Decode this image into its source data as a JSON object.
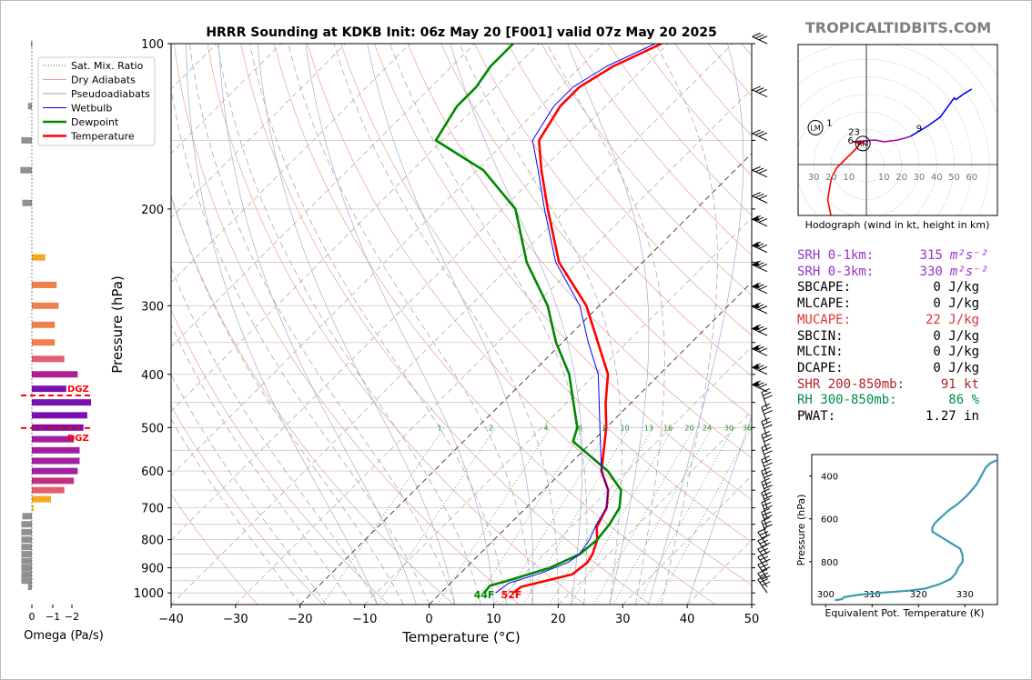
{
  "title": "HRRR Sounding at KDKB Init: 06z May 20 [F001] valid 07z May 20 2025",
  "brand": "TROPICALTIDBITS.COM",
  "legend": [
    {
      "label": "Sat. Mix. Ratio",
      "color": "#2e8b2e",
      "style": "dotted"
    },
    {
      "label": "Dry Adiabats",
      "color": "#e8a0a0",
      "style": "solid"
    },
    {
      "label": "Pseudoadiabats",
      "color": "#a0a0a0",
      "style": "solid"
    },
    {
      "label": "Wetbulb",
      "color": "#0000ff",
      "style": "solid"
    },
    {
      "label": "Dewpoint",
      "color": "#008800",
      "style": "bold"
    },
    {
      "label": "Temperature",
      "color": "#ff0000",
      "style": "bold"
    }
  ],
  "chart_data": [
    {
      "type": "line",
      "name": "skew-t",
      "xlabel": "Temperature (°C)",
      "ylabel": "Pressure (hPa)",
      "x_ticks": [
        -40,
        -30,
        -20,
        -10,
        0,
        10,
        20,
        30,
        40,
        50
      ],
      "y_ticks": [
        100,
        200,
        300,
        400,
        500,
        600,
        700,
        800,
        900,
        1000
      ],
      "xlim": [
        -40,
        50
      ],
      "ylim": [
        1050,
        100
      ],
      "y_scale": "log",
      "mixing_ratio_labels": [
        "1",
        "2",
        "4",
        "6",
        "8",
        "10",
        "13",
        "16",
        "20",
        "24",
        "30",
        "36"
      ],
      "series": [
        {
          "name": "Temperature",
          "color": "#ff0000",
          "points": [
            [
              11.2,
              1000
            ],
            [
              11.5,
              975
            ],
            [
              17.5,
              925
            ],
            [
              18,
              880
            ],
            [
              17.5,
              850
            ],
            [
              16,
              800
            ],
            [
              14,
              760
            ],
            [
              12.5,
              700
            ],
            [
              10,
              650
            ],
            [
              6,
              600
            ],
            [
              0,
              500
            ],
            [
              -4,
              450
            ],
            [
              -8,
              400
            ],
            [
              -14.5,
              350
            ],
            [
              -22,
              300
            ],
            [
              -33,
              250
            ],
            [
              -43,
              200
            ],
            [
              -50,
              170
            ],
            [
              -55,
              150
            ],
            [
              -57,
              130
            ],
            [
              -57,
              120
            ],
            [
              -55,
              110
            ],
            [
              -51,
              100
            ]
          ]
        },
        {
          "name": "Dewpoint",
          "color": "#008800",
          "points": [
            [
              6.7,
              1000
            ],
            [
              6.5,
              970
            ],
            [
              8.5,
              950
            ],
            [
              13,
              900
            ],
            [
              15.5,
              850
            ],
            [
              16,
              800
            ],
            [
              15.5,
              750
            ],
            [
              14.5,
              700
            ],
            [
              12,
              650
            ],
            [
              7,
              600
            ],
            [
              -3,
              530
            ],
            [
              -4.5,
              500
            ],
            [
              -9,
              450
            ],
            [
              -14,
              400
            ],
            [
              -21,
              350
            ],
            [
              -28,
              300
            ],
            [
              -38,
              250
            ],
            [
              -48,
              200
            ],
            [
              -59,
              170
            ],
            [
              -71,
              150
            ],
            [
              -73,
              130
            ],
            [
              -73,
              120
            ],
            [
              -74,
              110
            ],
            [
              -74,
              100
            ]
          ]
        },
        {
          "name": "Wetbulb",
          "color": "#0000ff",
          "points": [
            [
              8.5,
              1000
            ],
            [
              9,
              960
            ],
            [
              12.5,
              920
            ],
            [
              15,
              880
            ],
            [
              15.5,
              850
            ],
            [
              14.8,
              800
            ],
            [
              13.5,
              750
            ],
            [
              12.5,
              700
            ],
            [
              10,
              650
            ],
            [
              6,
              600
            ],
            [
              -1,
              500
            ],
            [
              -5,
              450
            ],
            [
              -9.5,
              400
            ],
            [
              -16,
              350
            ],
            [
              -23,
              300
            ],
            [
              -33.5,
              250
            ],
            [
              -43.5,
              200
            ],
            [
              -50.5,
              170
            ],
            [
              -56,
              150
            ],
            [
              -58,
              130
            ],
            [
              -58,
              120
            ],
            [
              -56,
              110
            ],
            [
              -52,
              100
            ]
          ]
        }
      ],
      "surface_labels": {
        "dewpoint": "44F",
        "temperature": "52F"
      },
      "wind_barbs_right": true
    },
    {
      "type": "bar",
      "name": "omega",
      "xlabel": "Omega (Pa/s)",
      "x_ticks": [
        "0",
        "−1",
        "−2"
      ],
      "dgz_label": "DGZ",
      "dgz_pressures_hpa": [
        437,
        501
      ],
      "bars": [
        {
          "p": 100,
          "v": 0.05,
          "c": "#909090"
        },
        {
          "p": 130,
          "v": 0.2,
          "c": "#909090"
        },
        {
          "p": 150,
          "v": 0.55,
          "c": "#909090"
        },
        {
          "p": 170,
          "v": 0.6,
          "c": "#909090"
        },
        {
          "p": 195,
          "v": 0.5,
          "c": "#909090"
        },
        {
          "p": 245,
          "v": -0.7,
          "c": "#f5a623"
        },
        {
          "p": 275,
          "v": -1.3,
          "c": "#f08050"
        },
        {
          "p": 300,
          "v": -1.4,
          "c": "#f08050"
        },
        {
          "p": 325,
          "v": -1.2,
          "c": "#f08050"
        },
        {
          "p": 350,
          "v": -1.2,
          "c": "#f08050"
        },
        {
          "p": 375,
          "v": -1.7,
          "c": "#e06070"
        },
        {
          "p": 400,
          "v": -2.4,
          "c": "#b02090"
        },
        {
          "p": 425,
          "v": -1.8,
          "c": "#7a10b0"
        },
        {
          "p": 450,
          "v": -3.1,
          "c": "#7a10b0"
        },
        {
          "p": 475,
          "v": -2.9,
          "c": "#7a10b0"
        },
        {
          "p": 500,
          "v": -2.7,
          "c": "#7a10b0"
        },
        {
          "p": 525,
          "v": -2.2,
          "c": "#a020a0"
        },
        {
          "p": 550,
          "v": -2.5,
          "c": "#a020a0"
        },
        {
          "p": 575,
          "v": -2.5,
          "c": "#a020a0"
        },
        {
          "p": 600,
          "v": -2.4,
          "c": "#a020a0"
        },
        {
          "p": 625,
          "v": -2.2,
          "c": "#c03080"
        },
        {
          "p": 650,
          "v": -1.7,
          "c": "#e06070"
        },
        {
          "p": 675,
          "v": -1.0,
          "c": "#f5a623"
        },
        {
          "p": 700,
          "v": -0.1,
          "c": "#f5d020"
        },
        {
          "p": 725,
          "v": 0.5,
          "c": "#909090"
        },
        {
          "p": 750,
          "v": 0.55,
          "c": "#909090"
        },
        {
          "p": 775,
          "v": 0.55,
          "c": "#909090"
        },
        {
          "p": 800,
          "v": 0.55,
          "c": "#909090"
        },
        {
          "p": 825,
          "v": 0.55,
          "c": "#909090"
        },
        {
          "p": 850,
          "v": 0.55,
          "c": "#909090"
        },
        {
          "p": 875,
          "v": 0.55,
          "c": "#909090"
        },
        {
          "p": 900,
          "v": 0.55,
          "c": "#909090"
        },
        {
          "p": 925,
          "v": 0.55,
          "c": "#909090"
        },
        {
          "p": 950,
          "v": 0.55,
          "c": "#909090"
        },
        {
          "p": 975,
          "v": 0.2,
          "c": "#909090"
        }
      ]
    },
    {
      "type": "line",
      "name": "hodograph",
      "caption": "Hodograph (wind in kt, height in km)",
      "x_tick_labels": [
        "30",
        "20",
        "10",
        "10",
        "20",
        "30",
        "40",
        "50",
        "60"
      ],
      "height_labels": [
        "1",
        "23",
        "6",
        "9"
      ],
      "storm_motion_labels": [
        "LM",
        "RM"
      ],
      "segments": [
        {
          "color": "#ff0000",
          "points": [
            [
              -15,
              -38
            ],
            [
              -10,
              -37
            ],
            [
              -20,
              -30
            ],
            [
              -22,
              -20
            ],
            [
              -20,
              -8
            ],
            [
              -17,
              -2
            ],
            [
              -5,
              10
            ],
            [
              -3,
              13
            ],
            [
              -2,
              12
            ],
            [
              -8,
              13
            ]
          ]
        },
        {
          "color": "#aa00aa",
          "points": [
            [
              -8,
              13
            ],
            [
              5,
              14
            ],
            [
              10,
              13
            ],
            [
              18,
              14
            ],
            [
              25,
              16
            ]
          ]
        },
        {
          "color": "#0000ff",
          "points": [
            [
              25,
              16
            ],
            [
              35,
              22
            ],
            [
              42,
              27
            ],
            [
              50,
              38
            ],
            [
              51,
              37
            ],
            [
              55,
              40
            ],
            [
              60,
              43
            ]
          ]
        }
      ]
    },
    {
      "type": "line",
      "name": "theta-e",
      "xlabel": "Equivalent Pot. Temperature (K)",
      "ylabel": "Pressure (hPa)",
      "x_ticks": [
        300,
        310,
        320,
        330
      ],
      "y_ticks": [
        400,
        600,
        800
      ],
      "xlim": [
        297,
        337
      ],
      "ylim": [
        1000,
        300
      ],
      "color": "#3a9ab0",
      "points": [
        [
          302,
          980
        ],
        [
          303.5,
          975
        ],
        [
          304,
          965
        ],
        [
          307,
          955
        ],
        [
          312,
          945
        ],
        [
          318,
          935
        ],
        [
          321.5,
          925
        ],
        [
          324.5,
          905
        ],
        [
          327,
          880
        ],
        [
          328,
          855
        ],
        [
          328.5,
          830
        ],
        [
          329.5,
          800
        ],
        [
          329.5,
          770
        ],
        [
          329,
          740
        ],
        [
          327.5,
          720
        ],
        [
          326,
          700
        ],
        [
          324.5,
          680
        ],
        [
          323,
          660
        ],
        [
          323,
          640
        ],
        [
          323.5,
          620
        ],
        [
          324.5,
          600
        ],
        [
          325.5,
          580
        ],
        [
          326.5,
          560
        ],
        [
          327.5,
          545
        ],
        [
          328.5,
          530
        ],
        [
          329.5,
          510
        ],
        [
          330.5,
          490
        ],
        [
          331.5,
          465
        ],
        [
          332.5,
          440
        ],
        [
          333,
          420
        ],
        [
          333.5,
          400
        ],
        [
          334,
          380
        ],
        [
          334.5,
          360
        ],
        [
          335.5,
          340
        ],
        [
          337,
          325
        ],
        [
          338.5,
          315
        ]
      ]
    }
  ],
  "indices": [
    {
      "label": "SRH 0-1km:",
      "value": "315",
      "unit": "m²s⁻²",
      "color": "#9932cc"
    },
    {
      "label": "SRH 0-3km:",
      "value": "330",
      "unit": "m²s⁻²",
      "color": "#9932cc"
    },
    {
      "label": "SBCAPE:",
      "value": "0 J/kg",
      "color": "#000000"
    },
    {
      "label": "MLCAPE:",
      "value": "0 J/kg",
      "color": "#000000"
    },
    {
      "label": "MUCAPE:",
      "value": "22 J/kg",
      "color": "#dd3333"
    },
    {
      "label": "SBCIN:",
      "value": "0 J/kg",
      "color": "#000000"
    },
    {
      "label": "MLCIN:",
      "value": "0 J/kg",
      "color": "#000000"
    },
    {
      "label": "DCAPE:",
      "value": "0 J/kg",
      "color": "#000000"
    },
    {
      "label": "SHR 200-850mb:",
      "value": "91 kt",
      "color": "#b22222"
    },
    {
      "label": "RH 300-850mb:",
      "value": "86 %",
      "color": "#008b45"
    },
    {
      "label": "PWAT:",
      "value": "1.27 in",
      "color": "#000000"
    }
  ]
}
